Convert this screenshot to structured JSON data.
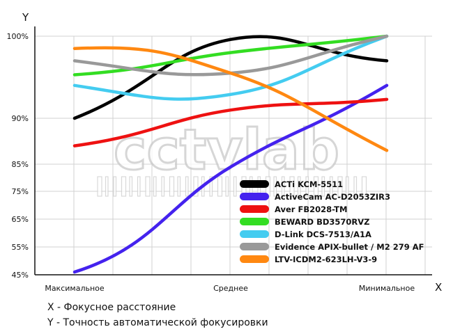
{
  "chart_data": {
    "type": "line",
    "x": [
      "Максимальное",
      "Среднее",
      "Минимальное"
    ],
    "y_ticks": [
      "100%",
      "90%",
      "85%",
      "75%",
      "65%",
      "55%",
      "45%"
    ],
    "xlabel": "X",
    "ylabel": "Y",
    "grid": true,
    "legend_position": "bottom-right",
    "series": [
      {
        "name": "ACTi KCM-5511",
        "color": "#000000",
        "points": [
          [
            0,
            90
          ],
          [
            1,
            99.6
          ],
          [
            2,
            97
          ]
        ]
      },
      {
        "name": "ActiveCam AC-D2053ZIR3",
        "color": "#4422ee",
        "points": [
          [
            0,
            46
          ],
          [
            1,
            84
          ],
          [
            2,
            94
          ]
        ]
      },
      {
        "name": "Aver FB2028-TM",
        "color": "#ee1111",
        "points": [
          [
            0,
            87
          ],
          [
            1,
            91
          ],
          [
            2,
            92.3
          ]
        ]
      },
      {
        "name": "BEWARD BD3570RVZ",
        "color": "#33dd22",
        "points": [
          [
            0,
            95.3
          ],
          [
            1,
            98
          ],
          [
            2,
            100
          ]
        ]
      },
      {
        "name": "D-Link DCS-7513/A1A",
        "color": "#44ccf0",
        "points": [
          [
            0,
            94
          ],
          [
            1,
            92.9
          ],
          [
            2,
            100
          ]
        ]
      },
      {
        "name": "Evidence APIX-bullet / M2 279 AF",
        "color": "#999999",
        "points": [
          [
            0,
            97
          ],
          [
            1,
            95.5
          ],
          [
            2,
            100
          ]
        ]
      },
      {
        "name": "LTV-ICDM2-623LH-V3-9",
        "color": "#ff8811",
        "points": [
          [
            0,
            98.5
          ],
          [
            1,
            95.5
          ],
          [
            2,
            86.5
          ]
        ]
      }
    ]
  },
  "watermark": {
    "text": "cctvlab"
  },
  "captions": [
    "X - Фокусное расстояние",
    "Y - Точность автоматической фокусировки"
  ]
}
